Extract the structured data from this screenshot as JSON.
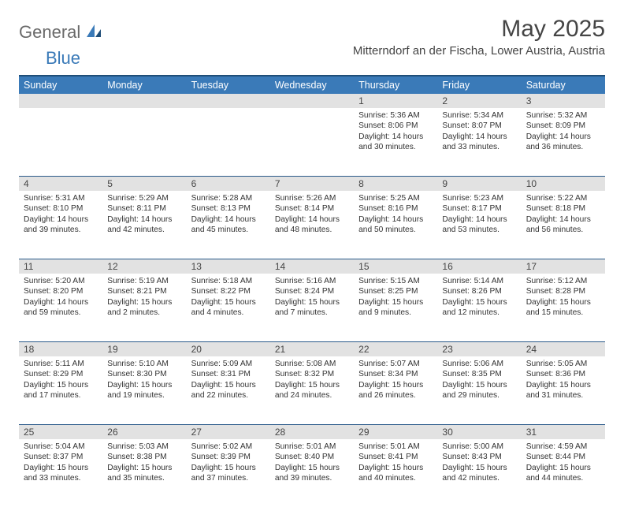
{
  "brand": {
    "general": "General",
    "blue": "Blue"
  },
  "title": "May 2025",
  "location": "Mitterndorf an der Fischa, Lower Austria, Austria",
  "colors": {
    "header_bg": "#3a7ab8",
    "header_border": "#1f4e78",
    "week_border": "#2a5a8a",
    "daynum_bg": "#e2e2e2",
    "text": "#333333",
    "logo_gray": "#6a6a6a",
    "logo_blue": "#3a7ab8"
  },
  "day_labels": [
    "Sunday",
    "Monday",
    "Tuesday",
    "Wednesday",
    "Thursday",
    "Friday",
    "Saturday"
  ],
  "weeks": [
    [
      {
        "n": "",
        "sr": "",
        "ss": "",
        "dl": ""
      },
      {
        "n": "",
        "sr": "",
        "ss": "",
        "dl": ""
      },
      {
        "n": "",
        "sr": "",
        "ss": "",
        "dl": ""
      },
      {
        "n": "",
        "sr": "",
        "ss": "",
        "dl": ""
      },
      {
        "n": "1",
        "sr": "Sunrise: 5:36 AM",
        "ss": "Sunset: 8:06 PM",
        "dl": "Daylight: 14 hours and 30 minutes."
      },
      {
        "n": "2",
        "sr": "Sunrise: 5:34 AM",
        "ss": "Sunset: 8:07 PM",
        "dl": "Daylight: 14 hours and 33 minutes."
      },
      {
        "n": "3",
        "sr": "Sunrise: 5:32 AM",
        "ss": "Sunset: 8:09 PM",
        "dl": "Daylight: 14 hours and 36 minutes."
      }
    ],
    [
      {
        "n": "4",
        "sr": "Sunrise: 5:31 AM",
        "ss": "Sunset: 8:10 PM",
        "dl": "Daylight: 14 hours and 39 minutes."
      },
      {
        "n": "5",
        "sr": "Sunrise: 5:29 AM",
        "ss": "Sunset: 8:11 PM",
        "dl": "Daylight: 14 hours and 42 minutes."
      },
      {
        "n": "6",
        "sr": "Sunrise: 5:28 AM",
        "ss": "Sunset: 8:13 PM",
        "dl": "Daylight: 14 hours and 45 minutes."
      },
      {
        "n": "7",
        "sr": "Sunrise: 5:26 AM",
        "ss": "Sunset: 8:14 PM",
        "dl": "Daylight: 14 hours and 48 minutes."
      },
      {
        "n": "8",
        "sr": "Sunrise: 5:25 AM",
        "ss": "Sunset: 8:16 PM",
        "dl": "Daylight: 14 hours and 50 minutes."
      },
      {
        "n": "9",
        "sr": "Sunrise: 5:23 AM",
        "ss": "Sunset: 8:17 PM",
        "dl": "Daylight: 14 hours and 53 minutes."
      },
      {
        "n": "10",
        "sr": "Sunrise: 5:22 AM",
        "ss": "Sunset: 8:18 PM",
        "dl": "Daylight: 14 hours and 56 minutes."
      }
    ],
    [
      {
        "n": "11",
        "sr": "Sunrise: 5:20 AM",
        "ss": "Sunset: 8:20 PM",
        "dl": "Daylight: 14 hours and 59 minutes."
      },
      {
        "n": "12",
        "sr": "Sunrise: 5:19 AM",
        "ss": "Sunset: 8:21 PM",
        "dl": "Daylight: 15 hours and 2 minutes."
      },
      {
        "n": "13",
        "sr": "Sunrise: 5:18 AM",
        "ss": "Sunset: 8:22 PM",
        "dl": "Daylight: 15 hours and 4 minutes."
      },
      {
        "n": "14",
        "sr": "Sunrise: 5:16 AM",
        "ss": "Sunset: 8:24 PM",
        "dl": "Daylight: 15 hours and 7 minutes."
      },
      {
        "n": "15",
        "sr": "Sunrise: 5:15 AM",
        "ss": "Sunset: 8:25 PM",
        "dl": "Daylight: 15 hours and 9 minutes."
      },
      {
        "n": "16",
        "sr": "Sunrise: 5:14 AM",
        "ss": "Sunset: 8:26 PM",
        "dl": "Daylight: 15 hours and 12 minutes."
      },
      {
        "n": "17",
        "sr": "Sunrise: 5:12 AM",
        "ss": "Sunset: 8:28 PM",
        "dl": "Daylight: 15 hours and 15 minutes."
      }
    ],
    [
      {
        "n": "18",
        "sr": "Sunrise: 5:11 AM",
        "ss": "Sunset: 8:29 PM",
        "dl": "Daylight: 15 hours and 17 minutes."
      },
      {
        "n": "19",
        "sr": "Sunrise: 5:10 AM",
        "ss": "Sunset: 8:30 PM",
        "dl": "Daylight: 15 hours and 19 minutes."
      },
      {
        "n": "20",
        "sr": "Sunrise: 5:09 AM",
        "ss": "Sunset: 8:31 PM",
        "dl": "Daylight: 15 hours and 22 minutes."
      },
      {
        "n": "21",
        "sr": "Sunrise: 5:08 AM",
        "ss": "Sunset: 8:32 PM",
        "dl": "Daylight: 15 hours and 24 minutes."
      },
      {
        "n": "22",
        "sr": "Sunrise: 5:07 AM",
        "ss": "Sunset: 8:34 PM",
        "dl": "Daylight: 15 hours and 26 minutes."
      },
      {
        "n": "23",
        "sr": "Sunrise: 5:06 AM",
        "ss": "Sunset: 8:35 PM",
        "dl": "Daylight: 15 hours and 29 minutes."
      },
      {
        "n": "24",
        "sr": "Sunrise: 5:05 AM",
        "ss": "Sunset: 8:36 PM",
        "dl": "Daylight: 15 hours and 31 minutes."
      }
    ],
    [
      {
        "n": "25",
        "sr": "Sunrise: 5:04 AM",
        "ss": "Sunset: 8:37 PM",
        "dl": "Daylight: 15 hours and 33 minutes."
      },
      {
        "n": "26",
        "sr": "Sunrise: 5:03 AM",
        "ss": "Sunset: 8:38 PM",
        "dl": "Daylight: 15 hours and 35 minutes."
      },
      {
        "n": "27",
        "sr": "Sunrise: 5:02 AM",
        "ss": "Sunset: 8:39 PM",
        "dl": "Daylight: 15 hours and 37 minutes."
      },
      {
        "n": "28",
        "sr": "Sunrise: 5:01 AM",
        "ss": "Sunset: 8:40 PM",
        "dl": "Daylight: 15 hours and 39 minutes."
      },
      {
        "n": "29",
        "sr": "Sunrise: 5:01 AM",
        "ss": "Sunset: 8:41 PM",
        "dl": "Daylight: 15 hours and 40 minutes."
      },
      {
        "n": "30",
        "sr": "Sunrise: 5:00 AM",
        "ss": "Sunset: 8:43 PM",
        "dl": "Daylight: 15 hours and 42 minutes."
      },
      {
        "n": "31",
        "sr": "Sunrise: 4:59 AM",
        "ss": "Sunset: 8:44 PM",
        "dl": "Daylight: 15 hours and 44 minutes."
      }
    ]
  ]
}
